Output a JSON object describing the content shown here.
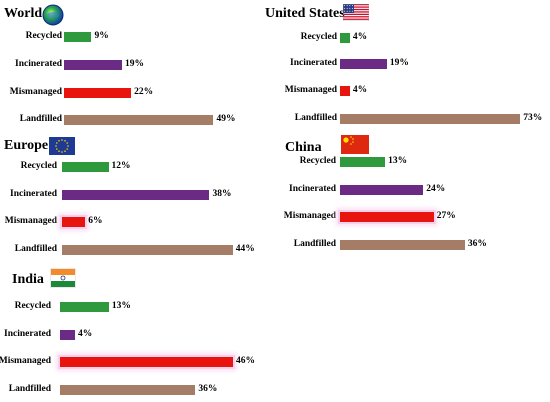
{
  "categories": [
    "Recycled",
    "Incinerated",
    "Mismanaged",
    "Landfilled"
  ],
  "colors": {
    "Recycled": "#2e9a3d",
    "Incinerated": "#6b2a84",
    "Mismanaged": "#e8140e",
    "Landfilled": "#a57d67"
  },
  "chart_data": [
    {
      "type": "bar",
      "title": "World",
      "icon": "globe-icon",
      "categories": [
        "Recycled",
        "Incinerated",
        "Mismanaged",
        "Landfilled"
      ],
      "values": [
        9,
        19,
        22,
        49
      ],
      "value_labels": [
        "9%",
        "19%",
        "22%",
        "49%"
      ]
    },
    {
      "type": "bar",
      "title": "United States",
      "icon": "us-flag-icon",
      "categories": [
        "Recycled",
        "Incinerated",
        "Mismanaged",
        "Landfilled"
      ],
      "values": [
        4,
        19,
        4,
        73
      ],
      "value_labels": [
        "4%",
        "19%",
        "4%",
        "73%"
      ]
    },
    {
      "type": "bar",
      "title": "Europe",
      "icon": "eu-flag-icon",
      "categories": [
        "Recycled",
        "Incinerated",
        "Mismanaged",
        "Landfilled"
      ],
      "values": [
        12,
        38,
        6,
        44
      ],
      "value_labels": [
        "12%",
        "38%",
        "6%",
        "44%"
      ]
    },
    {
      "type": "bar",
      "title": "China",
      "icon": "china-flag-icon",
      "categories": [
        "Recycled",
        "Incinerated",
        "Mismanaged",
        "Landfilled"
      ],
      "values": [
        13,
        24,
        27,
        36
      ],
      "value_labels": [
        "13%",
        "24%",
        "27%",
        "36%"
      ]
    },
    {
      "type": "bar",
      "title": "India",
      "icon": "india-flag-icon",
      "categories": [
        "Recycled",
        "Incinerated",
        "Mismanaged",
        "Landfilled"
      ],
      "values": [
        13,
        4,
        46,
        36
      ],
      "value_labels": [
        "13%",
        "4%",
        "46%",
        "36%"
      ]
    }
  ]
}
